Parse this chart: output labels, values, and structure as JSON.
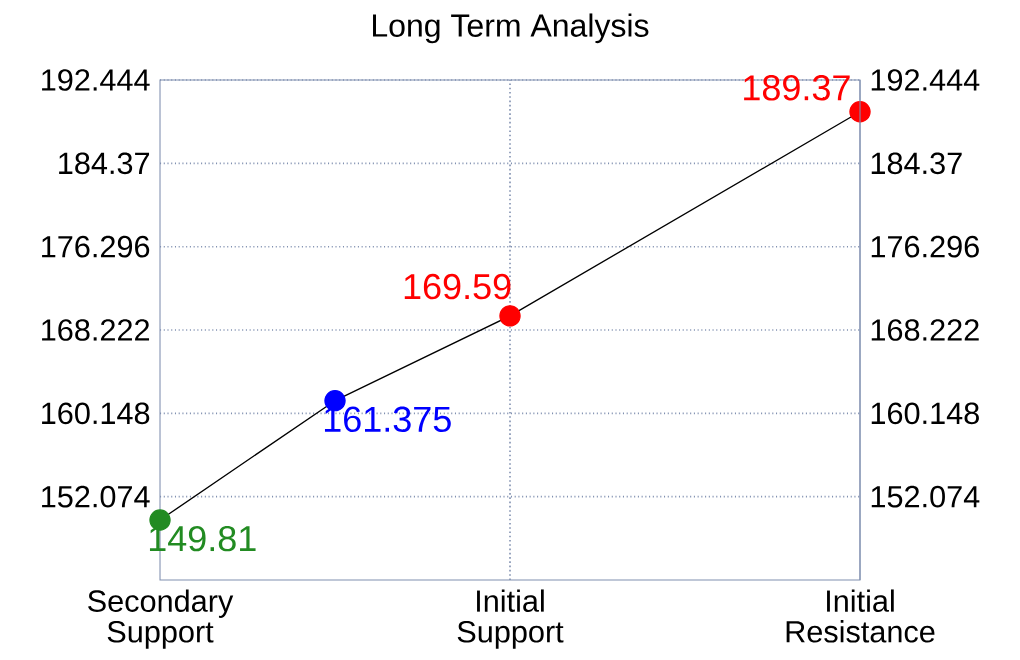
{
  "chart_data": {
    "type": "line",
    "title": "Long Term Analysis",
    "categories": [
      "Secondary\nSupport",
      null,
      "Initial\nSupport",
      null,
      "Initial\nResistance"
    ],
    "ylim": [
      144,
      192.444
    ],
    "yticks": [
      152.074,
      160.148,
      168.222,
      176.296,
      184.37,
      192.444
    ],
    "y2lim": [
      144,
      192.444
    ],
    "y2ticks": [
      152.074,
      160.148,
      168.222,
      176.296,
      184.37,
      192.444
    ],
    "grid": true,
    "series": [
      {
        "color": "#000000",
        "marker": "none",
        "values": [
          149.81,
          161.375,
          169.59,
          null,
          189.37
        ]
      },
      {
        "type": "scatter",
        "color": "#228b22",
        "marker": "circle",
        "values": [
          149.81,
          null,
          null,
          null,
          null
        ],
        "value_labels": [
          "149.81",
          null,
          null,
          null,
          null
        ]
      },
      {
        "type": "scatter",
        "color": "#0000ff",
        "marker": "circle",
        "values": [
          null,
          161.375,
          null,
          null,
          null
        ],
        "value_labels": [
          null,
          "161.375",
          null,
          null,
          null
        ]
      },
      {
        "type": "scatter",
        "color": "#ff0000",
        "marker": "circle",
        "values": [
          null,
          null,
          169.59,
          null,
          189.37
        ],
        "value_labels": [
          null,
          null,
          "169.59",
          null,
          "189.37"
        ]
      }
    ]
  }
}
